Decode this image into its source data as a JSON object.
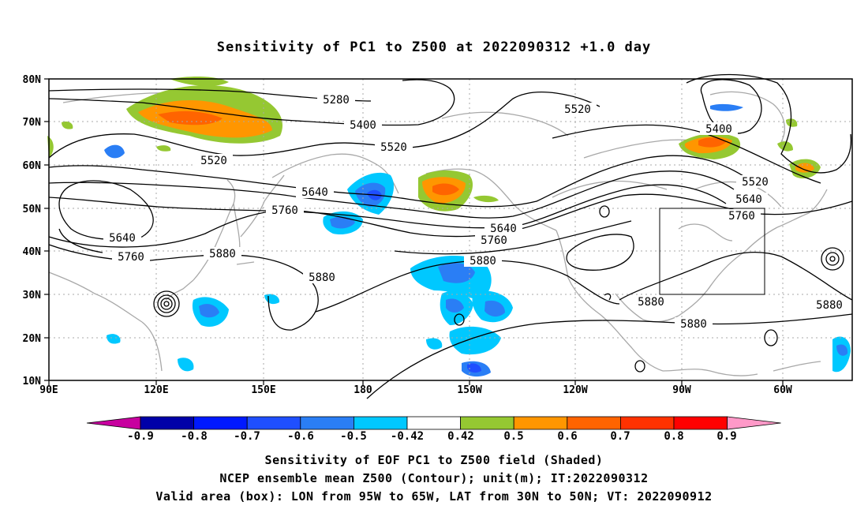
{
  "title": "Sensitivity of PC1 to Z500 at 2022090312 +1.0 day",
  "lat_labels": [
    "80N",
    "70N",
    "60N",
    "50N",
    "40N",
    "30N",
    "20N",
    "10N"
  ],
  "lon_labels": [
    "90E",
    "120E",
    "150E",
    "180",
    "150W",
    "120W",
    "90W",
    "60W"
  ],
  "contour_labels": [
    "5280",
    "5400",
    "5520",
    "5640",
    "5760",
    "5880"
  ],
  "colorbar": {
    "labels": [
      "-0.9",
      "-0.8",
      "-0.7",
      "-0.6",
      "-0.5",
      "-0.42",
      "0.42",
      "0.5",
      "0.6",
      "0.7",
      "0.8",
      "0.9"
    ],
    "colors": [
      "#c8009f",
      "#0000a8",
      "#0019ff",
      "#1f4fff",
      "#2a7ef5",
      "#00c8ff",
      "#ffffff",
      "#95c832",
      "#ff9600",
      "#ff6400",
      "#ff3200",
      "#ff0000",
      "#ff99c8"
    ]
  },
  "valid_box": {
    "lon_min": "95W",
    "lon_max": "65W",
    "lat_min": "30N",
    "lat_max": "50N"
  },
  "captions": [
    "Sensitivity of EOF PC1 to Z500 field (Shaded)",
    "NCEP ensemble mean Z500 (Contour); unit(m); IT:2022090312",
    "Valid area (box): LON from 95W to 65W, LAT from 30N to 50N; VT: 2022090912"
  ]
}
